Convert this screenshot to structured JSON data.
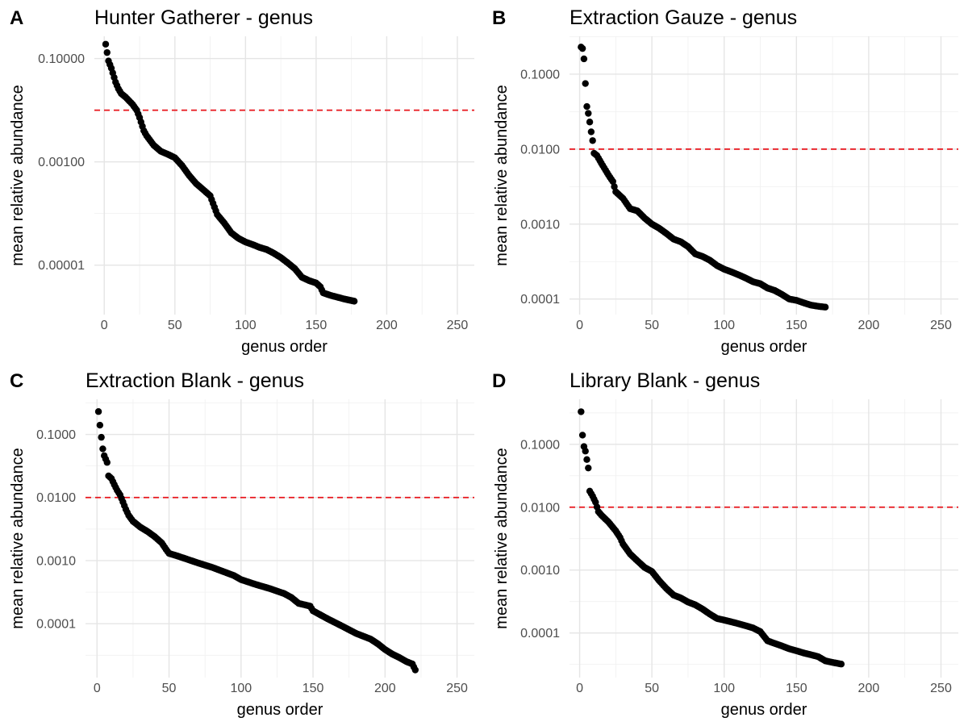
{
  "chart_data": [
    {
      "letter": "A",
      "type": "scatter",
      "title": "Hunter Gatherer - genus",
      "xlabel": "genus order",
      "ylabel": "mean relative abundance",
      "x_ticks": [
        0,
        50,
        100,
        150,
        200,
        250
      ],
      "y_tick_labels": [
        "0.10000",
        "0.00100",
        "0.00001"
      ],
      "y_tick_values": [
        0.1,
        0.001,
        1e-05
      ],
      "y_scale": "log10",
      "xlim": [
        -7,
        262
      ],
      "ylim": [
        1.1e-06,
        0.27
      ],
      "hline": 0.01,
      "hline_color": "#e8141b",
      "n_points": 177,
      "keypoints": [
        [
          1,
          0.19
        ],
        [
          3,
          0.09
        ],
        [
          5,
          0.065
        ],
        [
          8,
          0.035
        ],
        [
          10,
          0.026
        ],
        [
          12,
          0.021
        ],
        [
          15,
          0.018
        ],
        [
          20,
          0.013
        ],
        [
          23,
          0.01
        ],
        [
          25,
          0.0072
        ],
        [
          28,
          0.004
        ],
        [
          30,
          0.0032
        ],
        [
          35,
          0.0021
        ],
        [
          40,
          0.0016
        ],
        [
          45,
          0.0014
        ],
        [
          50,
          0.0012
        ],
        [
          55,
          0.00085
        ],
        [
          60,
          0.00055
        ],
        [
          65,
          0.00038
        ],
        [
          70,
          0.00029
        ],
        [
          75,
          0.00022
        ],
        [
          80,
          9.5e-05
        ],
        [
          85,
          6.5e-05
        ],
        [
          90,
          4.2e-05
        ],
        [
          95,
          3.3e-05
        ],
        [
          100,
          2.8e-05
        ],
        [
          105,
          2.5e-05
        ],
        [
          110,
          2.2e-05
        ],
        [
          115,
          2e-05
        ],
        [
          120,
          1.7e-05
        ],
        [
          125,
          1.4e-05
        ],
        [
          130,
          1.1e-05
        ],
        [
          135,
          8.5e-06
        ],
        [
          140,
          5.8e-06
        ],
        [
          145,
          5e-06
        ],
        [
          150,
          4.5e-06
        ],
        [
          153,
          3.8e-06
        ],
        [
          155,
          2.9e-06
        ],
        [
          160,
          2.6e-06
        ],
        [
          170,
          2.2e-06
        ],
        [
          177,
          2e-06
        ]
      ]
    },
    {
      "letter": "B",
      "type": "scatter",
      "title": "Extraction Gauze - genus",
      "xlabel": "genus order",
      "ylabel": "mean relative abundance",
      "x_ticks": [
        0,
        50,
        100,
        150,
        200,
        250
      ],
      "y_tick_labels": [
        "0.1000",
        "0.0100",
        "0.0010",
        "0.0001"
      ],
      "y_tick_values": [
        0.1,
        0.01,
        0.001,
        0.0001
      ],
      "y_scale": "log10",
      "xlim": [
        -7,
        262
      ],
      "ylim": [
        6.2e-05,
        0.32
      ],
      "hline": 0.01,
      "hline_color": "#e8141b",
      "n_points": 170,
      "keypoints": [
        [
          1,
          0.23
        ],
        [
          2,
          0.22
        ],
        [
          3,
          0.16
        ],
        [
          4,
          0.075
        ],
        [
          5,
          0.037
        ],
        [
          6,
          0.03
        ],
        [
          7,
          0.023
        ],
        [
          8,
          0.017
        ],
        [
          9,
          0.013
        ],
        [
          10,
          0.0088
        ],
        [
          12,
          0.0082
        ],
        [
          15,
          0.0065
        ],
        [
          20,
          0.0045
        ],
        [
          23,
          0.0037
        ],
        [
          25,
          0.0027
        ],
        [
          30,
          0.0022
        ],
        [
          35,
          0.0016
        ],
        [
          40,
          0.0015
        ],
        [
          45,
          0.0012
        ],
        [
          50,
          0.001
        ],
        [
          55,
          0.00088
        ],
        [
          60,
          0.00075
        ],
        [
          65,
          0.00063
        ],
        [
          70,
          0.00058
        ],
        [
          75,
          0.0005
        ],
        [
          80,
          0.0004
        ],
        [
          85,
          0.00037
        ],
        [
          90,
          0.00033
        ],
        [
          95,
          0.00028
        ],
        [
          100,
          0.00025
        ],
        [
          105,
          0.00023
        ],
        [
          110,
          0.00021
        ],
        [
          115,
          0.00019
        ],
        [
          120,
          0.00017
        ],
        [
          125,
          0.00016
        ],
        [
          130,
          0.00014
        ],
        [
          135,
          0.00013
        ],
        [
          140,
          0.000115
        ],
        [
          145,
          0.0001
        ],
        [
          150,
          9.6e-05
        ],
        [
          155,
          8.9e-05
        ],
        [
          160,
          8.3e-05
        ],
        [
          165,
          8e-05
        ],
        [
          170,
          7.8e-05
        ]
      ]
    },
    {
      "letter": "C",
      "type": "scatter",
      "title": "Extraction Blank - genus",
      "xlabel": "genus order",
      "ylabel": "mean relative abundance",
      "x_ticks": [
        0,
        50,
        100,
        150,
        200,
        250
      ],
      "y_tick_labels": [
        "0.1000",
        "0.0100",
        "0.0010",
        "0.0001"
      ],
      "y_tick_values": [
        0.1,
        0.01,
        0.001,
        0.0001
      ],
      "y_scale": "log10",
      "xlim": [
        -8,
        262
      ],
      "ylim": [
        1.4e-05,
        0.36
      ],
      "hline": 0.01,
      "hline_color": "#e8141b",
      "n_points": 221,
      "keypoints": [
        [
          1,
          0.23
        ],
        [
          2,
          0.14
        ],
        [
          3,
          0.09
        ],
        [
          4,
          0.059
        ],
        [
          5,
          0.046
        ],
        [
          7,
          0.036
        ],
        [
          8,
          0.022
        ],
        [
          10,
          0.02
        ],
        [
          12,
          0.016
        ],
        [
          14,
          0.013
        ],
        [
          16,
          0.011
        ],
        [
          18,
          0.0085
        ],
        [
          20,
          0.0065
        ],
        [
          22,
          0.0052
        ],
        [
          25,
          0.0042
        ],
        [
          30,
          0.0034
        ],
        [
          35,
          0.0029
        ],
        [
          40,
          0.0024
        ],
        [
          45,
          0.0019
        ],
        [
          48,
          0.0015
        ],
        [
          50,
          0.0013
        ],
        [
          55,
          0.0012
        ],
        [
          60,
          0.0011
        ],
        [
          70,
          0.00092
        ],
        [
          80,
          0.00078
        ],
        [
          90,
          0.00064
        ],
        [
          95,
          0.00058
        ],
        [
          100,
          0.0005
        ],
        [
          110,
          0.00042
        ],
        [
          120,
          0.00036
        ],
        [
          130,
          0.0003
        ],
        [
          135,
          0.00026
        ],
        [
          140,
          0.00021
        ],
        [
          148,
          0.00019
        ],
        [
          150,
          0.00016
        ],
        [
          160,
          0.00012
        ],
        [
          170,
          9.2e-05
        ],
        [
          180,
          7e-05
        ],
        [
          190,
          5.7e-05
        ],
        [
          195,
          4.8e-05
        ],
        [
          200,
          3.9e-05
        ],
        [
          205,
          3.3e-05
        ],
        [
          210,
          2.9e-05
        ],
        [
          215,
          2.5e-05
        ],
        [
          219,
          2.3e-05
        ],
        [
          221,
          1.85e-05
        ]
      ]
    },
    {
      "letter": "D",
      "type": "scatter",
      "title": "Library Blank - genus",
      "xlabel": "genus order",
      "ylabel": "mean relative abundance",
      "x_ticks": [
        0,
        50,
        100,
        150,
        200,
        250
      ],
      "y_tick_labels": [
        "0.1000",
        "0.0100",
        "0.0010",
        "0.0001"
      ],
      "y_tick_values": [
        0.1,
        0.01,
        0.001,
        0.0001
      ],
      "y_scale": "log10",
      "xlim": [
        -7,
        262
      ],
      "ylim": [
        1.95e-05,
        0.52
      ],
      "hline": 0.01,
      "hline_color": "#e8141b",
      "n_points": 181,
      "keypoints": [
        [
          1,
          0.33
        ],
        [
          2,
          0.14
        ],
        [
          3,
          0.092
        ],
        [
          4,
          0.078
        ],
        [
          6,
          0.042
        ],
        [
          7,
          0.018
        ],
        [
          9,
          0.015
        ],
        [
          11,
          0.012
        ],
        [
          13,
          0.0085
        ],
        [
          15,
          0.0075
        ],
        [
          20,
          0.0058
        ],
        [
          25,
          0.0042
        ],
        [
          28,
          0.0033
        ],
        [
          30,
          0.0026
        ],
        [
          35,
          0.0018
        ],
        [
          40,
          0.0014
        ],
        [
          45,
          0.0011
        ],
        [
          50,
          0.00095
        ],
        [
          55,
          0.00068
        ],
        [
          60,
          0.00051
        ],
        [
          65,
          0.0004
        ],
        [
          70,
          0.00036
        ],
        [
          75,
          0.00031
        ],
        [
          80,
          0.00028
        ],
        [
          85,
          0.00024
        ],
        [
          90,
          0.0002
        ],
        [
          95,
          0.00017
        ],
        [
          100,
          0.00016
        ],
        [
          105,
          0.00015
        ],
        [
          110,
          0.00014
        ],
        [
          115,
          0.00013
        ],
        [
          120,
          0.00012
        ],
        [
          125,
          0.000105
        ],
        [
          130,
          7.5e-05
        ],
        [
          135,
          6.8e-05
        ],
        [
          140,
          6.2e-05
        ],
        [
          145,
          5.6e-05
        ],
        [
          150,
          5.2e-05
        ],
        [
          155,
          4.8e-05
        ],
        [
          160,
          4.5e-05
        ],
        [
          165,
          4.2e-05
        ],
        [
          170,
          3.6e-05
        ],
        [
          175,
          3.4e-05
        ],
        [
          181,
          3.2e-05
        ]
      ]
    }
  ]
}
